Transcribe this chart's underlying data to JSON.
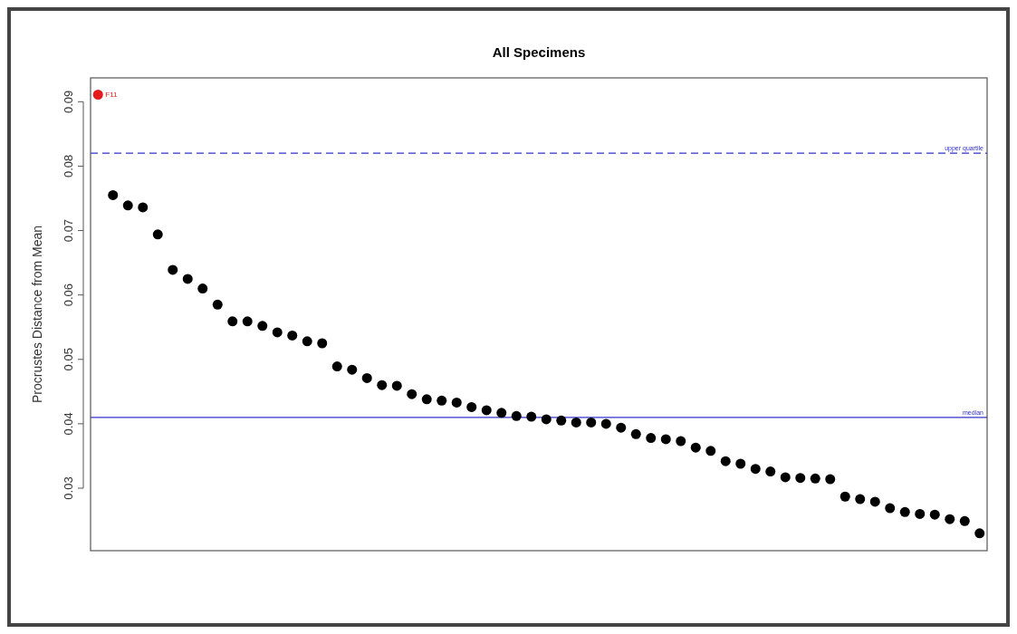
{
  "chart_data": {
    "type": "scatter",
    "title": "All Specimens",
    "ylabel": "Procrustes Distance from Mean",
    "categories": [
      null,
      null,
      null,
      null,
      null,
      null,
      null,
      null,
      null,
      null,
      null,
      null,
      null,
      null,
      null,
      null,
      null,
      null,
      null,
      null,
      null,
      null,
      null,
      null,
      null,
      null,
      null,
      null,
      null,
      null,
      null,
      null,
      null,
      null,
      null,
      null,
      null,
      null,
      null,
      null,
      null,
      null,
      null,
      null,
      null,
      null,
      null,
      null,
      null,
      null,
      null,
      null,
      null,
      null,
      null,
      null,
      null,
      null,
      null,
      null
    ],
    "values": [
      0.0911,
      0.0755,
      0.0739,
      0.0736,
      0.0694,
      0.0639,
      0.0625,
      0.061,
      0.0585,
      0.0559,
      0.0559,
      0.0552,
      0.0542,
      0.0537,
      0.0528,
      0.0525,
      0.0489,
      0.0484,
      0.0471,
      0.046,
      0.0459,
      0.0446,
      0.0438,
      0.0436,
      0.0433,
      0.0426,
      0.0421,
      0.0417,
      0.0412,
      0.0411,
      0.0407,
      0.0405,
      0.0402,
      0.0402,
      0.04,
      0.0394,
      0.0384,
      0.0378,
      0.0376,
      0.0373,
      0.0363,
      0.0358,
      0.0342,
      0.0338,
      0.033,
      0.0326,
      0.0317,
      0.0316,
      0.0315,
      0.0314,
      0.0287,
      0.0283,
      0.0279,
      0.0269,
      0.0263,
      0.026,
      0.0259,
      0.0252,
      0.0249,
      0.023
    ],
    "colors": [
      "#e41a1c",
      "#000000",
      "#000000",
      "#000000",
      "#000000",
      "#000000",
      "#000000",
      "#000000",
      "#000000",
      "#000000",
      "#000000",
      "#000000",
      "#000000",
      "#000000",
      "#000000",
      "#000000",
      "#000000",
      "#000000",
      "#000000",
      "#000000",
      "#000000",
      "#000000",
      "#000000",
      "#000000",
      "#000000",
      "#000000",
      "#000000",
      "#000000",
      "#000000",
      "#000000",
      "#000000",
      "#000000",
      "#000000",
      "#000000",
      "#000000",
      "#000000",
      "#000000",
      "#000000",
      "#000000",
      "#000000",
      "#000000",
      "#000000",
      "#000000",
      "#000000",
      "#000000",
      "#000000",
      "#000000",
      "#000000",
      "#000000",
      "#000000",
      "#000000",
      "#000000",
      "#000000",
      "#000000",
      "#000000",
      "#000000",
      "#000000",
      "#000000",
      "#000000",
      "#000000"
    ],
    "value_labels": [
      "F11",
      null,
      null,
      null,
      null,
      null,
      null,
      null,
      null,
      null,
      null,
      null,
      null,
      null,
      null,
      null,
      null,
      null,
      null,
      null,
      null,
      null,
      null,
      null,
      null,
      null,
      null,
      null,
      null,
      null,
      null,
      null,
      null,
      null,
      null,
      null,
      null,
      null,
      null,
      null,
      null,
      null,
      null,
      null,
      null,
      null,
      null,
      null,
      null,
      null,
      null,
      null,
      null,
      null,
      null,
      null,
      null,
      null,
      null,
      null
    ],
    "ylim": [
      0.0203,
      0.0937
    ],
    "yticks": [
      0.03,
      0.04,
      0.05,
      0.06,
      0.07,
      0.08,
      0.09
    ],
    "ref_lines": [
      {
        "axis": "y",
        "value": 0.082,
        "label": "upper quartile",
        "color": "#3333cc",
        "line_style": "dashed"
      },
      {
        "axis": "y",
        "value": 0.041,
        "label": "median",
        "color": "#3333cc",
        "line_style": "solid"
      }
    ],
    "marker": "circle",
    "tick_labels": "y",
    "grid": false
  }
}
